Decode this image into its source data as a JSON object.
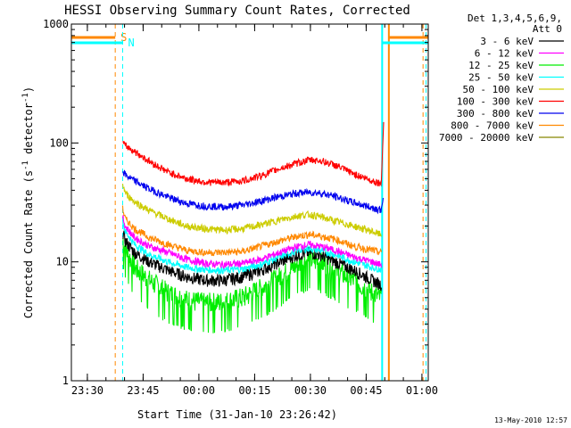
{
  "chart_data": {
    "type": "line",
    "title": "HESSI Observing Summary Count Rates, Corrected",
    "xlabel": "Start Time (31-Jan-10 23:26:42)",
    "ylabel_main": "Corrected Count Rate (s",
    "ylabel_sup1": "-1",
    "ylabel_mid": " detector",
    "ylabel_sup2": "-1",
    "ylabel_end": ")",
    "yscale": "log",
    "ylim": [
      1,
      1000
    ],
    "xlim_minutes": [
      -1,
      95
    ],
    "x_ticks": [
      {
        "label": "23:30",
        "min": 3.3
      },
      {
        "label": "23:45",
        "min": 18.3
      },
      {
        "label": "00:00",
        "min": 33.3
      },
      {
        "label": "00:15",
        "min": 48.3
      },
      {
        "label": "00:30",
        "min": 63.3
      },
      {
        "label": "00:45",
        "min": 78.3
      },
      {
        "label": "01:00",
        "min": 93.3
      }
    ],
    "y_ticks": [
      {
        "label": "1",
        "value": 1
      },
      {
        "label": "10",
        "value": 10
      },
      {
        "label": "100",
        "value": 100
      },
      {
        "label": "1000",
        "value": 1000
      }
    ],
    "legend_header": [
      "Det 1,3,4,5,6,9,",
      "Att 0"
    ],
    "legend_position": "right",
    "series": [
      {
        "name": "3 - 6 keV",
        "color": "#000000",
        "x": [
          12.8,
          13.5,
          16,
          20,
          25,
          30,
          35,
          40,
          45,
          50,
          55,
          60,
          63,
          66,
          70,
          75,
          80,
          82,
          82.5
        ],
        "y": [
          18,
          15,
          12,
          10,
          8.5,
          7.5,
          7,
          7,
          7.5,
          8.5,
          10,
          11.5,
          12,
          11.5,
          10,
          8.5,
          7,
          6.5,
          6.5
        ]
      },
      {
        "name": "6 - 12 keV",
        "color": "#ff00ff",
        "x": [
          12.8,
          13.5,
          16,
          20,
          25,
          30,
          35,
          40,
          45,
          50,
          55,
          60,
          63,
          66,
          70,
          75,
          80,
          82,
          82.5
        ],
        "y": [
          24,
          20,
          16,
          13.5,
          12,
          10.5,
          9.7,
          9.5,
          9.7,
          10.5,
          12,
          13.5,
          14,
          13.5,
          12.5,
          11,
          10,
          9.5,
          9.5
        ]
      },
      {
        "name": "12 - 25 keV",
        "color": "#00ee00",
        "x": [
          12.8,
          13.5,
          16,
          20,
          25,
          30,
          35,
          40,
          45,
          50,
          55,
          60,
          63,
          66,
          70,
          75,
          80,
          82,
          82.5
        ],
        "y": [
          16,
          13,
          9,
          7,
          5.5,
          4.8,
          4.5,
          4.6,
          5,
          6,
          7.5,
          9.5,
          10.5,
          10,
          8.5,
          7,
          5.5,
          5,
          5
        ]
      },
      {
        "name": "25 - 50 keV",
        "color": "#00ffff",
        "x": [
          12.8,
          13.5,
          16,
          20,
          25,
          30,
          35,
          40,
          45,
          50,
          55,
          60,
          63,
          66,
          70,
          75,
          80,
          82,
          82.5
        ],
        "y": [
          22,
          18,
          14,
          11.5,
          10,
          9,
          8.6,
          8.5,
          8.7,
          9.5,
          11,
          12.5,
          13,
          12.5,
          11.5,
          10,
          9,
          8.7,
          8.7
        ]
      },
      {
        "name": "50 - 100 keV",
        "color": "#cccc00",
        "x": [
          12.8,
          13.5,
          16,
          20,
          25,
          30,
          35,
          40,
          45,
          50,
          55,
          60,
          63,
          66,
          70,
          75,
          80,
          82,
          82.5
        ],
        "y": [
          45,
          38,
          32,
          27,
          23,
          20,
          19,
          18.5,
          19,
          20.5,
          22.5,
          24.5,
          25,
          24,
          22,
          20,
          18,
          17,
          17
        ]
      },
      {
        "name": "100 - 300 keV",
        "color": "#ff0000",
        "x": [
          12.8,
          13.5,
          16,
          20,
          25,
          30,
          35,
          40,
          45,
          50,
          55,
          60,
          63,
          66,
          70,
          75,
          80,
          82,
          82.5,
          83
        ],
        "y": [
          100,
          95,
          85,
          70,
          57,
          50,
          47,
          46.5,
          48,
          53,
          61,
          68,
          72,
          71,
          65,
          55,
          48,
          46,
          46,
          150
        ]
      },
      {
        "name": "300 - 800 keV",
        "color": "#0000ee",
        "x": [
          12.8,
          13.5,
          16,
          20,
          25,
          30,
          35,
          40,
          45,
          50,
          55,
          60,
          63,
          66,
          70,
          75,
          80,
          82,
          82.5,
          83
        ],
        "y": [
          58,
          54,
          48,
          41,
          35,
          31,
          29.5,
          29,
          30,
          32.5,
          35.5,
          38,
          38.5,
          38,
          35.5,
          31.5,
          28.5,
          27.5,
          27.5,
          40
        ]
      },
      {
        "name": "800 - 7000 keV",
        "color": "#ff8800",
        "x": [
          12.8,
          13.5,
          16,
          20,
          25,
          30,
          35,
          40,
          45,
          50,
          55,
          60,
          63,
          66,
          70,
          75,
          80,
          82,
          82.5
        ],
        "y": [
          28,
          23,
          19,
          16,
          14,
          12.5,
          12,
          12,
          12.2,
          13.5,
          15,
          16.5,
          17,
          16.5,
          15.5,
          13.5,
          12.5,
          12,
          12
        ]
      },
      {
        "name": "7000 - 20000 keV",
        "color": "#888800",
        "x": [],
        "y": []
      }
    ],
    "markers": [
      {
        "label": "S",
        "color": "#ff8800",
        "min_top": [
          -1,
          10.8
        ],
        "min_right": [
          84.4,
          95
        ],
        "dashed_x": [
          10.8,
          93.6
        ]
      },
      {
        "label": "N",
        "color": "#00ffff",
        "min_top": [
          -1,
          12.8
        ],
        "min_right": [
          82.6,
          95
        ],
        "dashed_x": [
          12.8,
          94.4
        ]
      }
    ]
  },
  "footer_date": "13-May-2010 12:57"
}
